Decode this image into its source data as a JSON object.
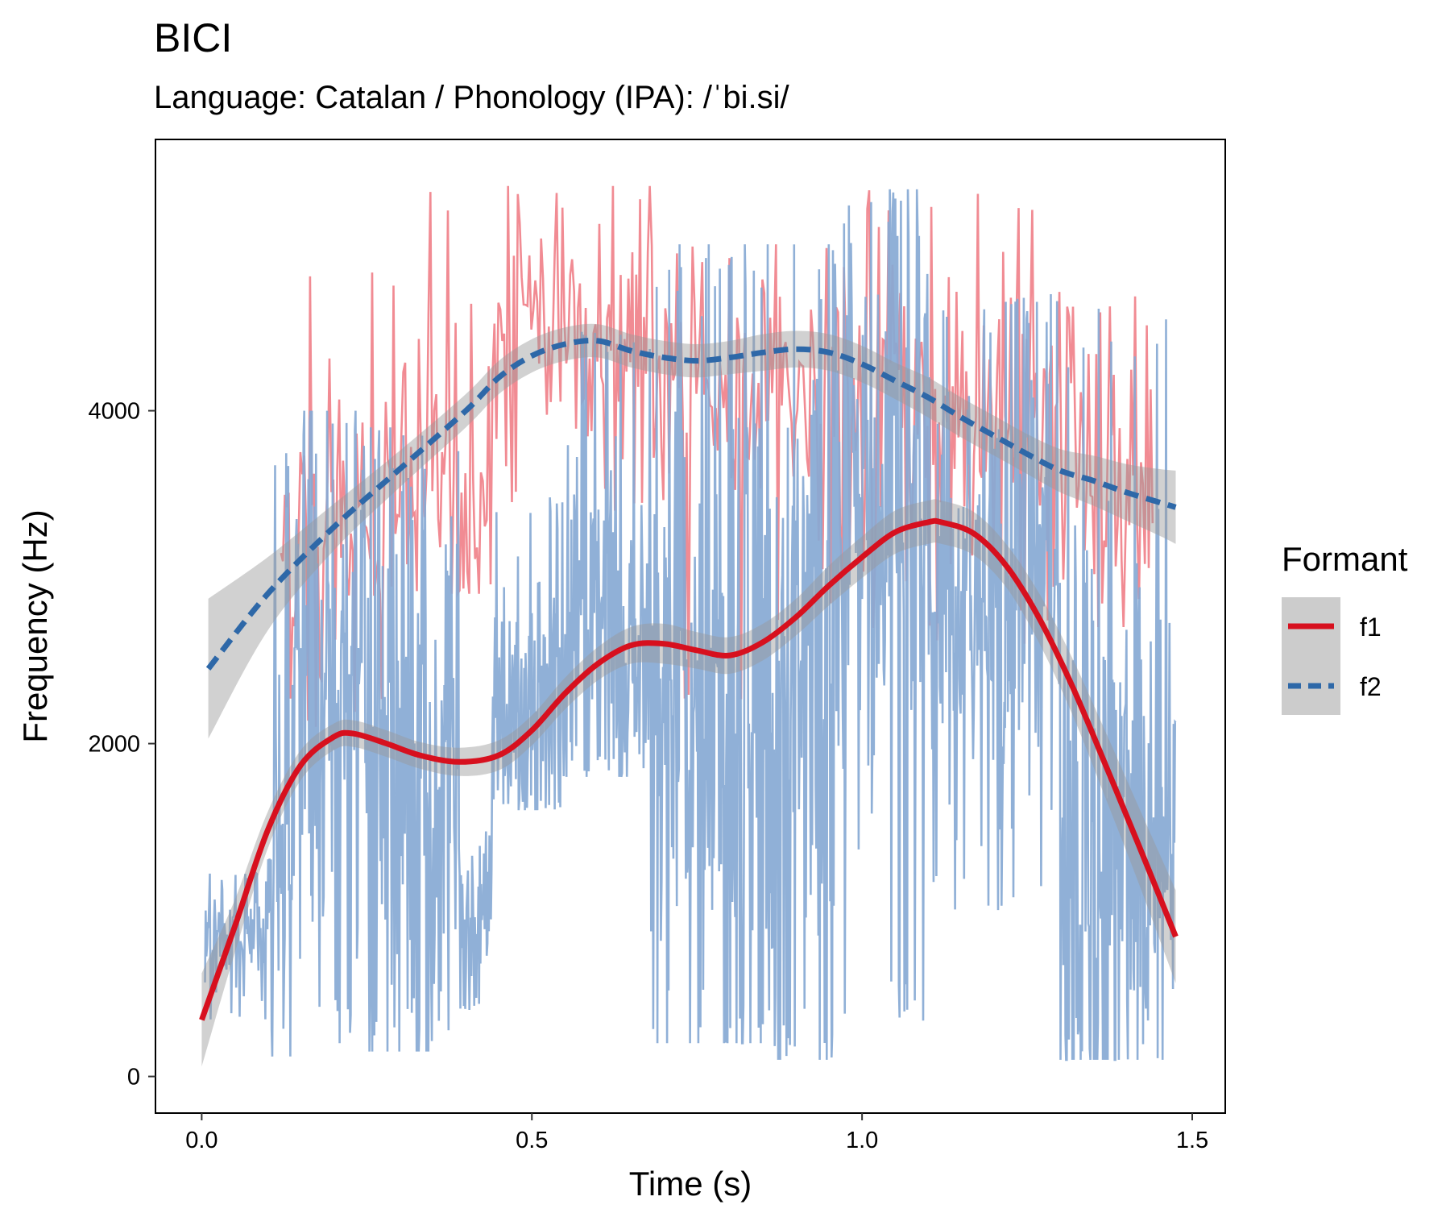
{
  "chart_data": {
    "type": "line",
    "title": "BICI",
    "subtitle": "Language: Catalan / Phonology (IPA): /ˈbi.si/",
    "xlabel": "Time (s)",
    "ylabel": "Frequency (Hz)",
    "xlim": [
      -0.07,
      1.55
    ],
    "ylim": [
      -220,
      5630
    ],
    "xticks": [
      0.0,
      0.5,
      1.0,
      1.5
    ],
    "xtick_labels": [
      "0.0",
      "0.5",
      "1.0",
      "1.5"
    ],
    "yticks": [
      0,
      2000,
      4000
    ],
    "ytick_labels": [
      "0",
      "2000",
      "4000"
    ],
    "grid": false,
    "legend": {
      "title": "Formant",
      "position": "right"
    },
    "colors": {
      "f1_raw": "#EE7780",
      "f2_raw": "#87A9D4",
      "f1_smooth": "#D7101E",
      "f2_smooth": "#2E68A8",
      "ribbon": "#999999",
      "legend_key_bg": "#CCCCCC"
    },
    "series": [
      {
        "name": "f1",
        "linestyle": "solid",
        "smooth_x": [
          0.0,
          0.05,
          0.1,
          0.15,
          0.2,
          0.23,
          0.28,
          0.33,
          0.39,
          0.45,
          0.5,
          0.55,
          0.6,
          0.65,
          0.7,
          0.75,
          0.8,
          0.85,
          0.9,
          0.95,
          1.0,
          1.05,
          1.1,
          1.12,
          1.17,
          1.22,
          1.27,
          1.32,
          1.37,
          1.42,
          1.475
        ],
        "smooth_y": [
          340,
          900,
          1480,
          1870,
          2040,
          2060,
          2000,
          1930,
          1890,
          1930,
          2080,
          2300,
          2480,
          2590,
          2600,
          2560,
          2530,
          2610,
          2760,
          2950,
          3120,
          3270,
          3330,
          3330,
          3260,
          3060,
          2740,
          2330,
          1860,
          1380,
          840
        ],
        "smooth_se": [
          280,
          160,
          110,
          90,
          80,
          80,
          80,
          80,
          85,
          90,
          90,
          95,
          100,
          110,
          120,
          110,
          110,
          110,
          110,
          120,
          125,
          130,
          130,
          130,
          130,
          130,
          150,
          170,
          200,
          230,
          280
        ],
        "raw": {
          "x_range": [
            0.005,
            1.475
          ],
          "n_points": 1400,
          "sections": [
            {
              "x": [
                0.005,
                0.1
              ],
              "mean": 800,
              "spread": 200,
              "max_val": 1220,
              "min_val": 300
            },
            {
              "x": [
                0.1,
                0.14
              ],
              "mean": 1200,
              "spread": 600,
              "max_val": 3800,
              "min_val": 120
            },
            {
              "x": [
                0.14,
                0.25
              ],
              "mean": 2500,
              "spread": 900,
              "max_val": 4000,
              "min_val": 200
            },
            {
              "x": [
                0.25,
                0.39
              ],
              "mean": 1800,
              "spread": 1000,
              "max_val": 3900,
              "min_val": 150
            },
            {
              "x": [
                0.39,
                0.44
              ],
              "mean": 900,
              "spread": 300,
              "max_val": 2900,
              "min_val": 400
            },
            {
              "x": [
                0.44,
                0.55
              ],
              "mean": 2300,
              "spread": 400,
              "max_val": 3500,
              "min_val": 1600
            },
            {
              "x": [
                0.55,
                0.68
              ],
              "mean": 2600,
              "spread": 500,
              "max_val": 4500,
              "min_val": 1800
            },
            {
              "x": [
                0.68,
                0.85
              ],
              "mean": 2100,
              "spread": 1100,
              "max_val": 5000,
              "min_val": 200
            },
            {
              "x": [
                0.85,
                0.96
              ],
              "mean": 2400,
              "spread": 1100,
              "max_val": 5000,
              "min_val": 100
            },
            {
              "x": [
                0.96,
                1.1
              ],
              "mean": 3200,
              "spread": 1000,
              "max_val": 5330,
              "min_val": 300
            },
            {
              "x": [
                1.1,
                1.3
              ],
              "mean": 2900,
              "spread": 700,
              "max_val": 4700,
              "min_val": 1000
            },
            {
              "x": [
                1.3,
                1.475
              ],
              "mean": 1500,
              "spread": 1100,
              "max_val": 4700,
              "min_val": 100
            }
          ]
        }
      },
      {
        "name": "f2",
        "linestyle": "dashed",
        "smooth_x": [
          0.01,
          0.1,
          0.2,
          0.3,
          0.4,
          0.45,
          0.5,
          0.55,
          0.6,
          0.65,
          0.7,
          0.75,
          0.8,
          0.85,
          0.9,
          0.95,
          1.0,
          1.05,
          1.1,
          1.15,
          1.2,
          1.25,
          1.3,
          1.35,
          1.4,
          1.45,
          1.475
        ],
        "smooth_y": [
          2450,
          2900,
          3300,
          3650,
          4000,
          4200,
          4330,
          4400,
          4420,
          4360,
          4320,
          4300,
          4320,
          4350,
          4370,
          4350,
          4280,
          4180,
          4080,
          3960,
          3850,
          3740,
          3640,
          3580,
          3510,
          3450,
          3420
        ],
        "smooth_se": [
          420,
          220,
          140,
          110,
          100,
          100,
          100,
          100,
          100,
          100,
          100,
          100,
          100,
          110,
          110,
          110,
          110,
          110,
          120,
          120,
          120,
          120,
          130,
          150,
          170,
          200,
          220
        ],
        "raw": {
          "x_range": [
            0.12,
            1.44
          ],
          "n_points": 450,
          "sections": [
            {
              "x": [
                0.12,
                0.3
              ],
              "mean": 3300,
              "spread": 500,
              "max_val": 4850,
              "min_val": 2100
            },
            {
              "x": [
                0.3,
                0.45
              ],
              "mean": 3800,
              "spread": 500,
              "max_val": 5330,
              "min_val": 2900
            },
            {
              "x": [
                0.45,
                0.68
              ],
              "mean": 4450,
              "spread": 450,
              "max_val": 5350,
              "min_val": 3400
            },
            {
              "x": [
                0.68,
                0.95
              ],
              "mean": 4100,
              "spread": 400,
              "max_val": 5000,
              "min_val": 2200
            },
            {
              "x": [
                0.95,
                1.3
              ],
              "mean": 3900,
              "spread": 500,
              "max_val": 5330,
              "min_val": 2600
            },
            {
              "x": [
                1.3,
                1.44
              ],
              "mean": 3600,
              "spread": 500,
              "max_val": 4700,
              "min_val": 2700
            }
          ]
        }
      }
    ]
  }
}
